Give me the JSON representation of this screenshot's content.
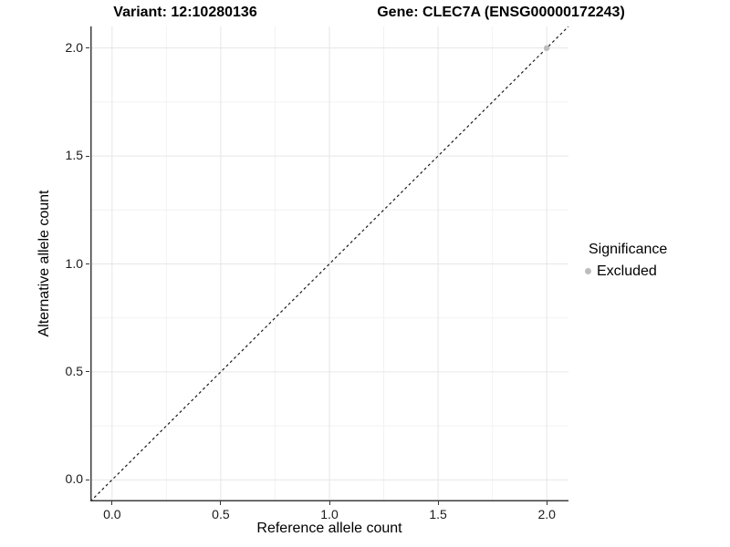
{
  "chart_data": {
    "type": "scatter",
    "title_left": "Variant: 12:10280136",
    "title_right": "Gene: CLEC7A (ENSG00000172243)",
    "xlabel": "Reference allele count",
    "ylabel": "Alternative allele count",
    "xlim": [
      -0.1,
      2.1
    ],
    "ylim": [
      -0.1,
      2.1
    ],
    "xticks": [
      0.0,
      0.5,
      1.0,
      1.5,
      2.0
    ],
    "yticks": [
      0.0,
      0.5,
      1.0,
      1.5,
      2.0
    ],
    "xticks_minor": [
      0.25,
      0.75,
      1.25,
      1.75
    ],
    "yticks_minor": [
      0.25,
      0.75,
      1.25,
      1.75
    ],
    "grid": true,
    "reference_line": {
      "kind": "identity",
      "style": "dashed",
      "color": "#1a1a1a",
      "from": [
        -0.1,
        -0.1
      ],
      "to": [
        2.1,
        2.1
      ]
    },
    "series": [
      {
        "name": "Excluded",
        "color": "#bdbdbd",
        "points": [
          [
            2.0,
            2.0
          ]
        ]
      }
    ],
    "legend": {
      "position": "right",
      "title": "Significance",
      "items": [
        {
          "label": "Excluded",
          "color": "#bdbdbd"
        }
      ]
    },
    "colors": {
      "axis_line": "#3c3c3c",
      "grid_major": "#e6e6e6",
      "grid_minor": "#f2f2f2",
      "point": "#bdbdbd",
      "background": "#ffffff"
    }
  }
}
